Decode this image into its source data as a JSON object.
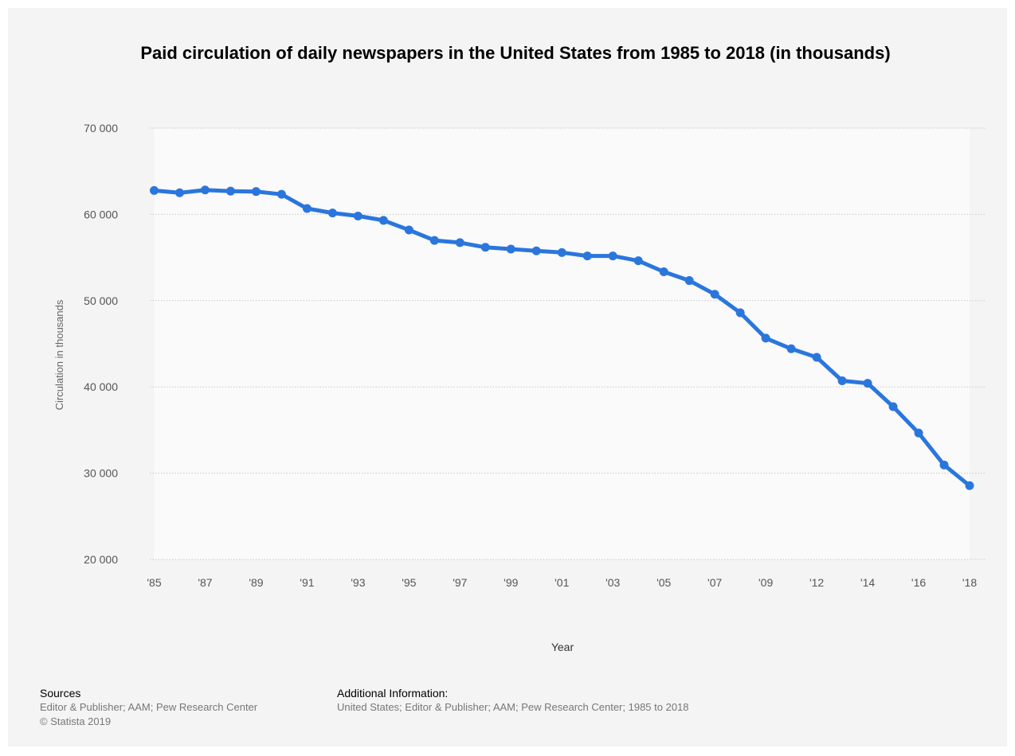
{
  "chart_data": {
    "type": "line",
    "title": "Paid circulation of daily newspapers in the United States from 1985 to 2018 (in thousands)",
    "xlabel": "Year",
    "ylabel": "Circulation in thousands",
    "ylim": [
      20000,
      70000
    ],
    "y_ticks": [
      20000,
      30000,
      40000,
      50000,
      60000,
      70000
    ],
    "y_tick_labels": [
      "20 000",
      "30 000",
      "40 000",
      "50 000",
      "60 000",
      "70 000"
    ],
    "x_tick_labels": [
      "'85",
      "'87",
      "'89",
      "'91",
      "'93",
      "'95",
      "'97",
      "'99",
      "'01",
      "'03",
      "'05",
      "'07",
      "'09",
      "'12",
      "'14",
      "'16",
      "'18"
    ],
    "grid": true,
    "legend": "none",
    "color": "#2a76dd",
    "categories": [
      "1985",
      "1986",
      "1987",
      "1988",
      "1989",
      "1990",
      "1991",
      "1992",
      "1993",
      "1994",
      "1995",
      "1996",
      "1997",
      "1998",
      "1999",
      "2000",
      "2001",
      "2002",
      "2003",
      "2004",
      "2005",
      "2006",
      "2007",
      "2008",
      "2009",
      "2011",
      "2012",
      "2013",
      "2014",
      "2015",
      "2016",
      "2017",
      "2018"
    ],
    "series": [
      {
        "values": [
          62766,
          62502,
          62826,
          62695,
          62649,
          62328,
          60687,
          60164,
          59812,
          59305,
          58193,
          56983,
          56728,
          56182,
          55979,
          55773,
          55578,
          55186,
          55185,
          54626,
          53345,
          52329,
          50742,
          48597,
          45653,
          44421,
          43433,
          40712,
          40420,
          37711,
          34657,
          30948,
          28554
        ]
      }
    ]
  },
  "footer": {
    "sources_heading": "Sources",
    "sources_text": "Editor & Publisher; AAM; Pew Research Center",
    "copyright": "© Statista 2019",
    "additional_heading": "Additional Information:",
    "additional_text": "United States; Editor & Publisher; AAM; Pew Research Center; 1985 to 2018"
  }
}
